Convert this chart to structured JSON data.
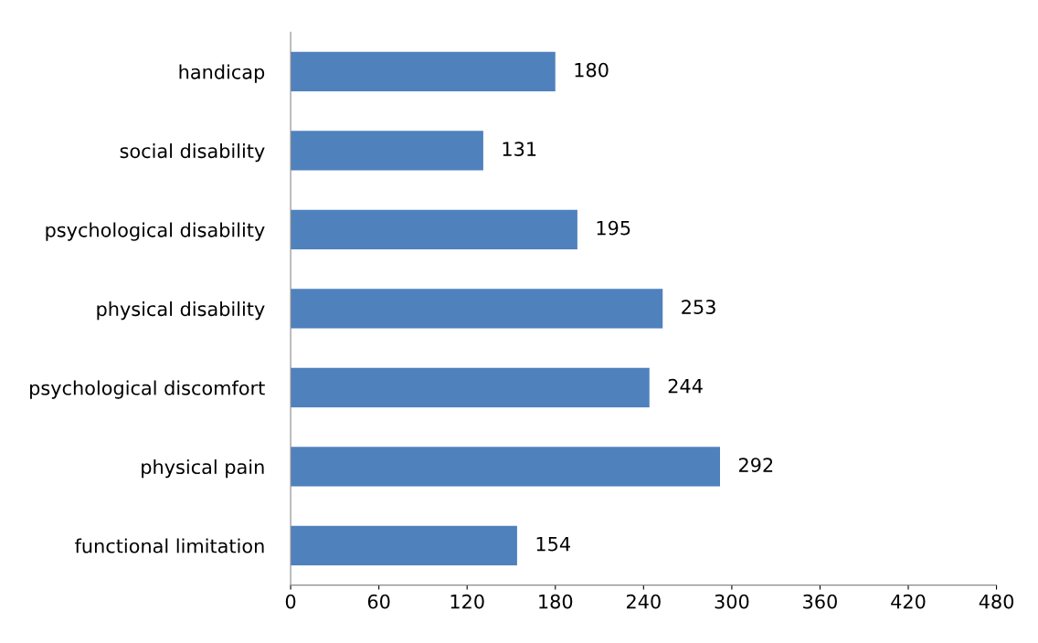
{
  "chart_data": {
    "type": "bar",
    "orientation": "horizontal",
    "categories": [
      "handicap",
      "social disability",
      "psychological disability",
      "physical disability",
      "psychological discomfort",
      "physical pain",
      "functional limitation"
    ],
    "values": [
      180,
      131,
      195,
      253,
      244,
      292,
      154
    ],
    "color": "#4f81bd",
    "xlim": [
      0,
      480
    ],
    "xticks": [
      0,
      60,
      120,
      180,
      240,
      300,
      360,
      420,
      480
    ],
    "data_labels": true,
    "grid": false
  }
}
